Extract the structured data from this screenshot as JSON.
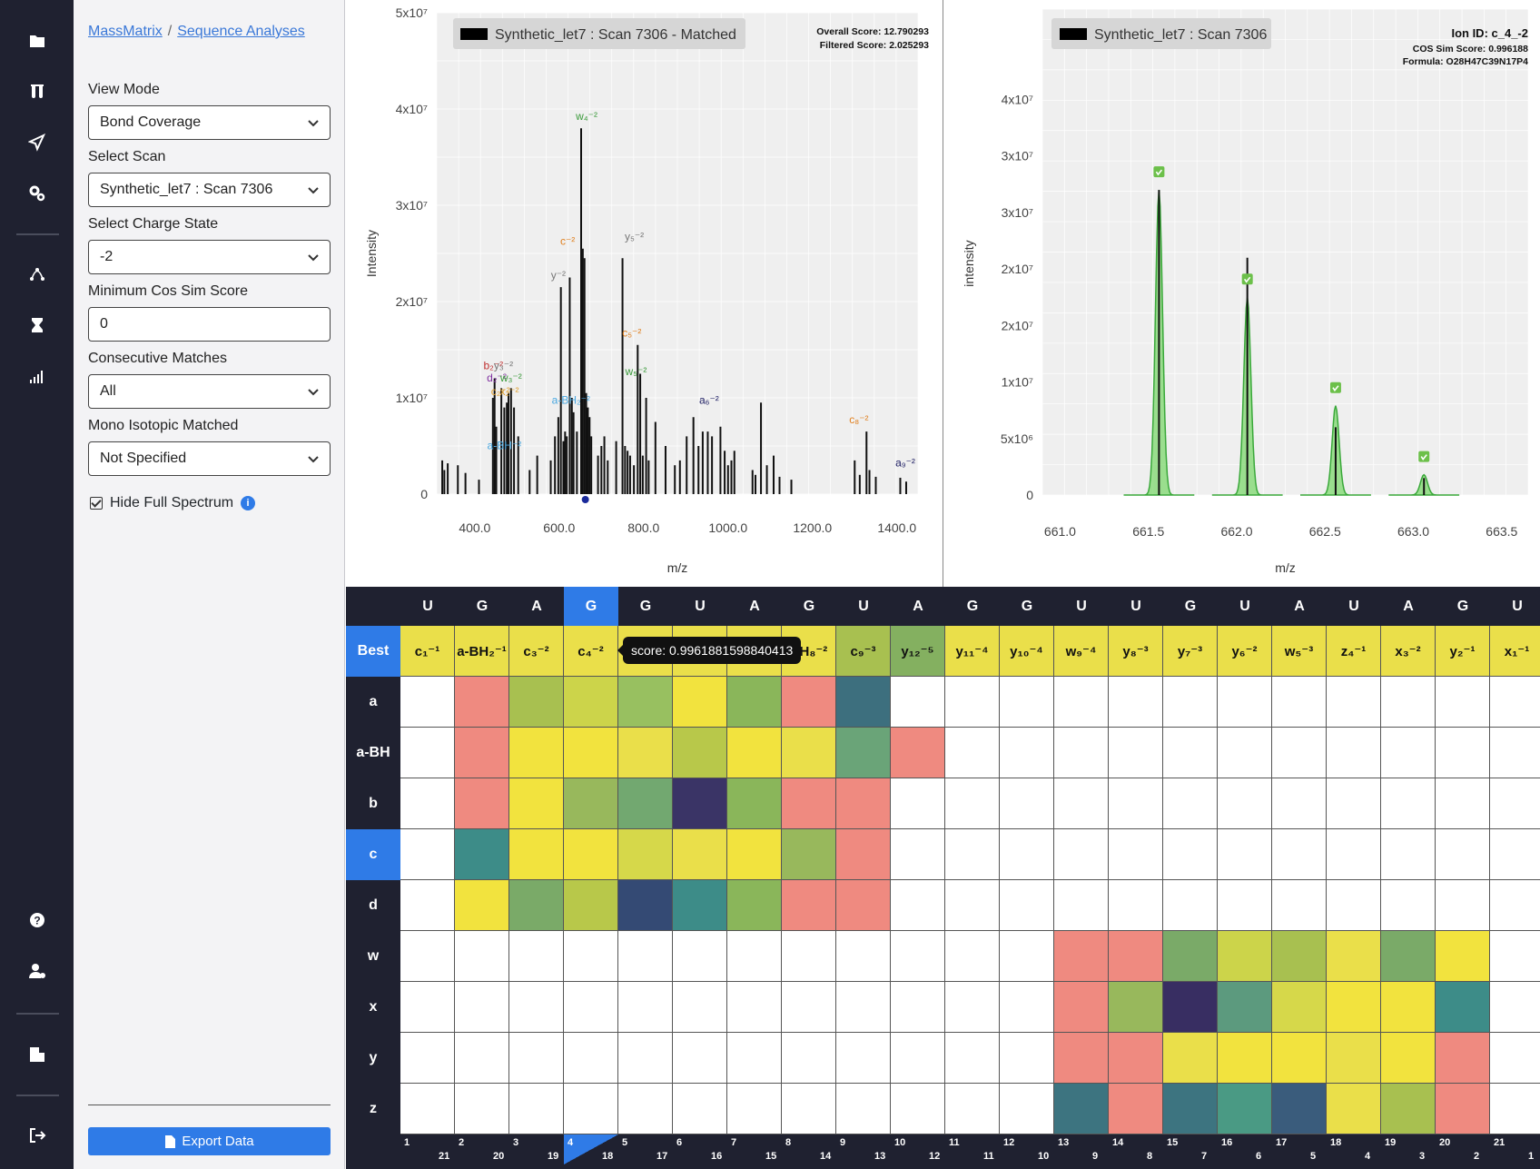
{
  "breadcrumb": {
    "root": "MassMatrix",
    "current": "Sequence Analyses",
    "sep": "/"
  },
  "controls": {
    "view_mode": {
      "label": "View Mode",
      "value": "Bond Coverage"
    },
    "select_scan": {
      "label": "Select Scan",
      "value": "Synthetic_let7 : Scan 7306"
    },
    "charge_state": {
      "label": "Select Charge State",
      "value": "-2"
    },
    "min_cos": {
      "label": "Minimum Cos Sim Score",
      "value": "0"
    },
    "consecutive": {
      "label": "Consecutive Matches",
      "value": "All"
    },
    "mono_iso": {
      "label": "Mono Isotopic Matched",
      "value": "Not Specified"
    },
    "hide_full": {
      "label": "Hide Full Spectrum",
      "checked": true
    },
    "export_label": "Export Data"
  },
  "rail_icons": [
    "folder-icon",
    "test-tubes-icon",
    "send-icon",
    "gears-icon",
    "route-icon",
    "hourglass-icon",
    "signal-bars-icon",
    "help-icon",
    "user-settings-icon",
    "building-icon",
    "logout-icon"
  ],
  "colors": {
    "rail_bg": "#1f2130",
    "accent": "#2f7be7",
    "peak_green": "#4caf50"
  },
  "chart_data": [
    {
      "type": "bar",
      "legend": "Synthetic_let7 : Scan 7306 - Matched",
      "annotations": [
        "Overall Score: 12.790293",
        "Filtered Score: 2.025293"
      ],
      "xlabel": "m/z",
      "ylabel": "Intensity",
      "xlim": [
        310,
        1450
      ],
      "ylim": [
        0,
        50000000
      ],
      "x_ticks": [
        "400.0",
        "600.0",
        "800.0",
        "1000.0",
        "1200.0",
        "1400.0"
      ],
      "y_ticks": [
        "0",
        "1x10⁷",
        "2x10⁷",
        "3x10⁷",
        "4x10⁷",
        "5x10⁷"
      ],
      "peaks": [
        {
          "x": 323,
          "y": 3500000
        },
        {
          "x": 328,
          "y": 2500000
        },
        {
          "x": 336,
          "y": 3200000
        },
        {
          "x": 360,
          "y": 3000000
        },
        {
          "x": 378,
          "y": 2200000
        },
        {
          "x": 410,
          "y": 1500000
        },
        {
          "x": 443,
          "y": 10000000
        },
        {
          "x": 447,
          "y": 12000000
        },
        {
          "x": 451,
          "y": 7000000
        },
        {
          "x": 463,
          "y": 11000000
        },
        {
          "x": 470,
          "y": 9000000
        },
        {
          "x": 476,
          "y": 9500000
        },
        {
          "x": 480,
          "y": 10500000
        },
        {
          "x": 486,
          "y": 11000000
        },
        {
          "x": 493,
          "y": 9000000
        },
        {
          "x": 503,
          "y": 6000000
        },
        {
          "x": 530,
          "y": 2500000
        },
        {
          "x": 548,
          "y": 4000000
        },
        {
          "x": 580,
          "y": 3500000
        },
        {
          "x": 590,
          "y": 6000000
        },
        {
          "x": 598,
          "y": 8000000
        },
        {
          "x": 604,
          "y": 21500000
        },
        {
          "x": 610,
          "y": 5500000
        },
        {
          "x": 614,
          "y": 6500000
        },
        {
          "x": 618,
          "y": 6000000
        },
        {
          "x": 625,
          "y": 22500000
        },
        {
          "x": 630,
          "y": 10000000
        },
        {
          "x": 634,
          "y": 8500000
        },
        {
          "x": 642,
          "y": 6500000
        },
        {
          "x": 652,
          "y": 38000000
        },
        {
          "x": 656,
          "y": 25500000
        },
        {
          "x": 660,
          "y": 24500000
        },
        {
          "x": 664,
          "y": 10500000
        },
        {
          "x": 668,
          "y": 9000000
        },
        {
          "x": 672,
          "y": 8000000
        },
        {
          "x": 676,
          "y": 6000000
        },
        {
          "x": 692,
          "y": 4000000
        },
        {
          "x": 700,
          "y": 5000000
        },
        {
          "x": 707,
          "y": 6000000
        },
        {
          "x": 715,
          "y": 3500000
        },
        {
          "x": 735,
          "y": 5500000
        },
        {
          "x": 750,
          "y": 24500000
        },
        {
          "x": 756,
          "y": 5000000
        },
        {
          "x": 762,
          "y": 4500000
        },
        {
          "x": 768,
          "y": 4000000
        },
        {
          "x": 777,
          "y": 3000000
        },
        {
          "x": 786,
          "y": 15500000
        },
        {
          "x": 792,
          "y": 12500000
        },
        {
          "x": 798,
          "y": 4000000
        },
        {
          "x": 806,
          "y": 10000000
        },
        {
          "x": 812,
          "y": 3500000
        },
        {
          "x": 828,
          "y": 7500000
        },
        {
          "x": 852,
          "y": 5000000
        },
        {
          "x": 874,
          "y": 3000000
        },
        {
          "x": 886,
          "y": 3500000
        },
        {
          "x": 902,
          "y": 6000000
        },
        {
          "x": 918,
          "y": 8000000
        },
        {
          "x": 930,
          "y": 5000000
        },
        {
          "x": 940,
          "y": 6500000
        },
        {
          "x": 952,
          "y": 6500000
        },
        {
          "x": 962,
          "y": 6000000
        },
        {
          "x": 982,
          "y": 7000000
        },
        {
          "x": 992,
          "y": 4500000
        },
        {
          "x": 1000,
          "y": 3000000
        },
        {
          "x": 1008,
          "y": 3500000
        },
        {
          "x": 1015,
          "y": 4500000
        },
        {
          "x": 1058,
          "y": 2500000
        },
        {
          "x": 1065,
          "y": 2000000
        },
        {
          "x": 1078,
          "y": 9500000
        },
        {
          "x": 1092,
          "y": 3000000
        },
        {
          "x": 1108,
          "y": 4000000
        },
        {
          "x": 1122,
          "y": 1800000
        },
        {
          "x": 1150,
          "y": 1500000
        },
        {
          "x": 1300,
          "y": 3500000
        },
        {
          "x": 1312,
          "y": 2000000
        },
        {
          "x": 1328,
          "y": 6500000
        },
        {
          "x": 1335,
          "y": 2500000
        },
        {
          "x": 1350,
          "y": 1800000
        },
        {
          "x": 1408,
          "y": 1700000
        },
        {
          "x": 1422,
          "y": 1300000
        }
      ],
      "labels": [
        {
          "x": 665,
          "y": 38500000,
          "text": "w₄⁻²",
          "color": "#3a9a3a"
        },
        {
          "x": 620,
          "y": 25500000,
          "text": "c⁻²",
          "color": "#e08020"
        },
        {
          "x": 778,
          "y": 26000000,
          "text": "y₅⁻²",
          "color": "#777"
        },
        {
          "x": 598,
          "y": 22000000,
          "text": "y⁻²",
          "color": "#777"
        },
        {
          "x": 772,
          "y": 16000000,
          "text": "c₅⁻²",
          "color": "#e08020"
        },
        {
          "x": 782,
          "y": 12000000,
          "text": "w₅⁻²",
          "color": "#3a9a3a"
        },
        {
          "x": 444,
          "y": 12600000,
          "text": "b₂⁻²",
          "color": "#c03030"
        },
        {
          "x": 468,
          "y": 12600000,
          "text": "y₃⁻²",
          "color": "#777"
        },
        {
          "x": 452,
          "y": 11300000,
          "text": "d₂⁻²",
          "color": "#8030a0"
        },
        {
          "x": 486,
          "y": 11300000,
          "text": "w₃⁻²",
          "color": "#3a9a3a"
        },
        {
          "x": 461,
          "y": 9900000,
          "text": "c₂⁻²",
          "color": "#e0a030"
        },
        {
          "x": 482,
          "y": 9900000,
          "text": "x₂⁻²",
          "color": "#e0a030"
        },
        {
          "x": 628,
          "y": 9000000,
          "text": "a-BH₂⁻²",
          "color": "#4aa8e0"
        },
        {
          "x": 955,
          "y": 9000000,
          "text": "a₆⁻²",
          "color": "#222266"
        },
        {
          "x": 470,
          "y": 4300000,
          "text": "a-BH⁻²",
          "color": "#4aa8e0"
        },
        {
          "x": 1310,
          "y": 7000000,
          "text": "c₈⁻²",
          "color": "#e08020"
        },
        {
          "x": 1420,
          "y": 2500000,
          "text": "a₉⁻²",
          "color": "#222266"
        }
      ],
      "highlight_marker": {
        "x": 662
      }
    },
    {
      "type": "bar",
      "legend": "Synthetic_let7 : Scan 7306",
      "annotations": [
        "Ion ID: c_4_-2",
        "COS Sim Score: 0.996188",
        "Formula: O28H47C39N17P4"
      ],
      "xlabel": "m/z",
      "ylabel": "intensity",
      "xlim": [
        660.9,
        663.65
      ],
      "ylim": [
        0,
        43000000
      ],
      "x_ticks": [
        "661.0",
        "661.5",
        "662.0",
        "662.5",
        "663.0",
        "663.5"
      ],
      "y_ticks": [
        "0",
        "5x10⁶",
        "1x10⁷",
        "2x10⁷",
        "2x10⁷",
        "3x10⁷",
        "3x10⁷",
        "4x10⁷"
      ],
      "observed_peaks": [
        {
          "x": 661.56,
          "y": 27000000
        },
        {
          "x": 662.06,
          "y": 21000000
        },
        {
          "x": 662.56,
          "y": 6000000
        },
        {
          "x": 663.06,
          "y": 1500000
        }
      ],
      "theoretical_envelope": [
        {
          "x": 661.56,
          "y": 27000000
        },
        {
          "x": 662.06,
          "y": 17500000
        },
        {
          "x": 662.56,
          "y": 7900000
        },
        {
          "x": 663.06,
          "y": 1800000
        }
      ],
      "matched_markers": [
        661.56,
        662.06,
        662.56,
        663.06
      ]
    }
  ],
  "heatmap": {
    "sequence": [
      "U",
      "G",
      "A",
      "G",
      "G",
      "U",
      "A",
      "G",
      "U",
      "A",
      "G",
      "G",
      "U",
      "U",
      "G",
      "U",
      "A",
      "U",
      "A",
      "G",
      "U"
    ],
    "selected_col": 3,
    "best_label": "Best",
    "best": [
      "c₁⁻¹",
      "a-BH₂⁻¹",
      "c₃⁻²",
      "c₄⁻²",
      "",
      "",
      "",
      "BH₈⁻²",
      "c₉⁻³",
      "y₁₂⁻⁵",
      "y₁₁⁻⁴",
      "y₁₀⁻⁴",
      "w₉⁻⁴",
      "y₈⁻³",
      "y₇⁻³",
      "y₆⁻²",
      "w₅⁻³",
      "z₄⁻¹",
      "x₃⁻²",
      "y₂⁻¹",
      "x₁⁻¹"
    ],
    "best_colors": [
      "#eadf4a",
      "#eadf4a",
      "#eadf4a",
      "#eadf4a",
      "#eadf4a",
      "#eadf4a",
      "#eadf4a",
      "#eadf4a",
      "#a8c050",
      "#84b060",
      "#eadf4a",
      "#eadf4a",
      "#eadf4a",
      "#eadf4a",
      "#eadf4a",
      "#eadf4a",
      "#eadf4a",
      "#eadf4a",
      "#eadf4a",
      "#eadf4a",
      "#eadf4a"
    ],
    "rows": [
      {
        "label": "a",
        "selected": false,
        "colors": [
          "#fff",
          "#ef8a80",
          "#a8c050",
          "#ccd44a",
          "#98c060",
          "#f2e33e",
          "#8ab65a",
          "#ef8a80",
          "#3d6f7e",
          "#fff",
          "#fff",
          "#fff",
          "#fff",
          "#fff",
          "#fff",
          "#fff",
          "#fff",
          "#fff",
          "#fff",
          "#fff",
          "#fff"
        ]
      },
      {
        "label": "a-BH",
        "selected": false,
        "colors": [
          "#fff",
          "#ef8a80",
          "#f2e33e",
          "#f2e33e",
          "#eadf4a",
          "#b8c84a",
          "#f2e33e",
          "#eadf4a",
          "#6aa478",
          "#ef8a80",
          "#fff",
          "#fff",
          "#fff",
          "#fff",
          "#fff",
          "#fff",
          "#fff",
          "#fff",
          "#fff",
          "#fff",
          "#fff"
        ]
      },
      {
        "label": "b",
        "selected": false,
        "colors": [
          "#fff",
          "#ef8a80",
          "#f2e33e",
          "#98b85c",
          "#72a870",
          "#3a3466",
          "#8ab65a",
          "#ef8a80",
          "#ef8a80",
          "#fff",
          "#fff",
          "#fff",
          "#fff",
          "#fff",
          "#fff",
          "#fff",
          "#fff",
          "#fff",
          "#fff",
          "#fff",
          "#fff"
        ]
      },
      {
        "label": "c",
        "selected": true,
        "colors": [
          "#fff",
          "#3d8c88",
          "#f2e33e",
          "#f2e33e",
          "#d6d84a",
          "#eadf4a",
          "#f2e33e",
          "#98b85c",
          "#ef8a80",
          "#fff",
          "#fff",
          "#fff",
          "#fff",
          "#fff",
          "#fff",
          "#fff",
          "#fff",
          "#fff",
          "#fff",
          "#fff",
          "#fff"
        ]
      },
      {
        "label": "d",
        "selected": false,
        "colors": [
          "#fff",
          "#f2e33e",
          "#7aaa68",
          "#b8c84a",
          "#344a74",
          "#3d8c88",
          "#8ab65a",
          "#ef8a80",
          "#ef8a80",
          "#fff",
          "#fff",
          "#fff",
          "#fff",
          "#fff",
          "#fff",
          "#fff",
          "#fff",
          "#fff",
          "#fff",
          "#fff",
          "#fff"
        ]
      },
      {
        "label": "w",
        "selected": false,
        "colors": [
          "#fff",
          "#fff",
          "#fff",
          "#fff",
          "#fff",
          "#fff",
          "#fff",
          "#fff",
          "#fff",
          "#fff",
          "#fff",
          "#fff",
          "#ef8a80",
          "#ef8a80",
          "#7aaa68",
          "#ccd44a",
          "#a8c050",
          "#eadf4a",
          "#7aaa68",
          "#f2e33e",
          "#fff"
        ]
      },
      {
        "label": "x",
        "selected": false,
        "colors": [
          "#fff",
          "#fff",
          "#fff",
          "#fff",
          "#fff",
          "#fff",
          "#fff",
          "#fff",
          "#fff",
          "#fff",
          "#fff",
          "#fff",
          "#ef8a80",
          "#98b85c",
          "#382e62",
          "#5c9a7e",
          "#d6d84a",
          "#f2e33e",
          "#f2e33e",
          "#3d8c88",
          "#fff"
        ]
      },
      {
        "label": "y",
        "selected": false,
        "colors": [
          "#fff",
          "#fff",
          "#fff",
          "#fff",
          "#fff",
          "#fff",
          "#fff",
          "#fff",
          "#fff",
          "#fff",
          "#fff",
          "#fff",
          "#ef8a80",
          "#ef8a80",
          "#eadf4a",
          "#f2e33e",
          "#f2e33e",
          "#eadf4a",
          "#f2e33e",
          "#ef8a80",
          "#fff"
        ]
      },
      {
        "label": "z",
        "selected": false,
        "colors": [
          "#fff",
          "#fff",
          "#fff",
          "#fff",
          "#fff",
          "#fff",
          "#fff",
          "#fff",
          "#fff",
          "#fff",
          "#fff",
          "#fff",
          "#3d7480",
          "#ef8a80",
          "#3d7480",
          "#4a9a84",
          "#3a5c7c",
          "#eadf4a",
          "#a8c050",
          "#ef8a80",
          "#fff"
        ]
      }
    ],
    "top_index": [
      "1",
      "2",
      "3",
      "4",
      "5",
      "6",
      "7",
      "8",
      "9",
      "10",
      "11",
      "12",
      "13",
      "14",
      "15",
      "16",
      "17",
      "18",
      "19",
      "20",
      "21"
    ],
    "bottom_index": [
      "21",
      "20",
      "19",
      "18",
      "17",
      "16",
      "15",
      "14",
      "13",
      "12",
      "11",
      "10",
      "9",
      "8",
      "7",
      "6",
      "5",
      "4",
      "3",
      "2",
      "1"
    ],
    "tooltip": "score: 0.9961881598840413"
  }
}
